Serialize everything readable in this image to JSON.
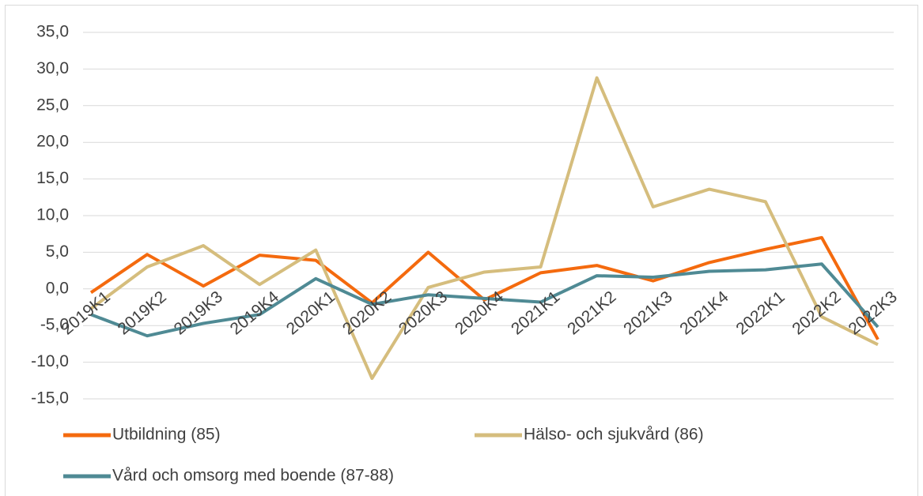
{
  "chart_data": {
    "type": "line",
    "categories": [
      "2019K1",
      "2019K2",
      "2019K3",
      "2019K4",
      "2020K1",
      "2020K2",
      "2020K3",
      "2020K4",
      "2021K1",
      "2021K2",
      "2021K3",
      "2021K4",
      "2022K1",
      "2022K2",
      "2022K3"
    ],
    "series": [
      {
        "name": "Utbildning (85)",
        "color": "#f46a0e",
        "values": [
          -0.5,
          4.7,
          0.4,
          4.6,
          3.9,
          -1.9,
          5.0,
          -1.5,
          2.2,
          3.2,
          1.1,
          3.6,
          5.4,
          7.0,
          -6.9
        ]
      },
      {
        "name": "Hälso- och sjukvård (86)",
        "color": "#d5bd7d",
        "values": [
          -2.7,
          3.0,
          5.9,
          0.6,
          5.3,
          -12.2,
          0.2,
          2.3,
          3.0,
          28.8,
          11.2,
          13.6,
          11.9,
          -3.8,
          -7.6
        ]
      },
      {
        "name": "Vård och omsorg med boende (87-88)",
        "color": "#4f8a94",
        "values": [
          -3.5,
          -6.4,
          -4.7,
          -3.5,
          1.4,
          -2.1,
          -0.8,
          -1.3,
          -1.8,
          1.8,
          1.6,
          2.4,
          2.6,
          3.4,
          -5.2
        ]
      }
    ],
    "ylim": [
      -15,
      35
    ],
    "yticks": [
      {
        "value": -15,
        "label": "-15,0"
      },
      {
        "value": -10,
        "label": "-10,0"
      },
      {
        "value": -5,
        "label": "-5,0"
      },
      {
        "value": 0,
        "label": "0,0"
      },
      {
        "value": 5,
        "label": "5,0"
      },
      {
        "value": 10,
        "label": "10,0"
      },
      {
        "value": 15,
        "label": "15,0"
      },
      {
        "value": 20,
        "label": "20,0"
      },
      {
        "value": 25,
        "label": "25,0"
      },
      {
        "value": 30,
        "label": "30,0"
      },
      {
        "value": 35,
        "label": "35,0"
      }
    ],
    "grid": true,
    "legend": "bottom"
  }
}
